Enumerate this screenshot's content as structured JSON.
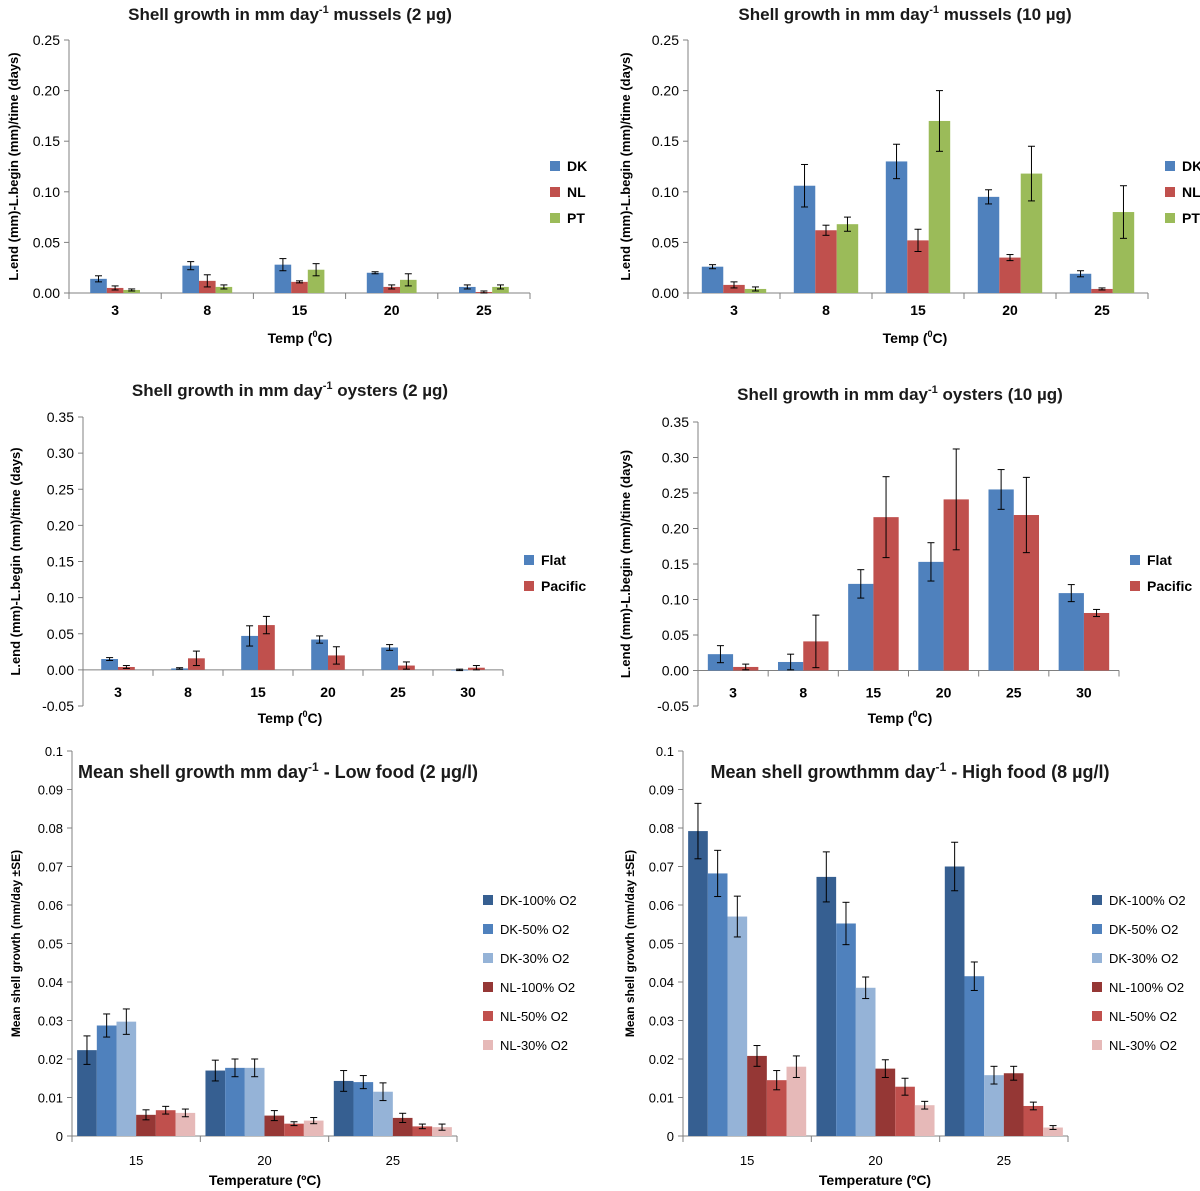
{
  "chart_data": [
    {
      "id": "mussels_2",
      "type": "bar",
      "title": "Shell growth in mm day",
      "title_sup": "-1",
      "title_suffix": " mussels (2 µg)",
      "ylabel": "L.end (mm)-L.begin (mm)/time (days)",
      "xlabel": "Temp (",
      "xlabel_sup": "0",
      "xlabel_suffix": "C)",
      "ylim": [
        0,
        0.25
      ],
      "yticks": [
        "0.00",
        "0.05",
        "0.10",
        "0.15",
        "0.20",
        "0.25"
      ],
      "categories": [
        "3",
        "8",
        "15",
        "20",
        "25"
      ],
      "series": [
        {
          "name": "DK",
          "color": "#4f81bd",
          "values": [
            0.014,
            0.027,
            0.028,
            0.02,
            0.006
          ],
          "errors": [
            0.003,
            0.004,
            0.006,
            0.001,
            0.002
          ]
        },
        {
          "name": "NL",
          "color": "#c0504d",
          "values": [
            0.005,
            0.012,
            0.011,
            0.006,
            0.001
          ],
          "errors": [
            0.002,
            0.006,
            0.001,
            0.002,
            0.001
          ]
        },
        {
          "name": "PT",
          "color": "#9bbb59",
          "values": [
            0.003,
            0.006,
            0.023,
            0.013,
            0.006
          ],
          "errors": [
            0.001,
            0.002,
            0.006,
            0.006,
            0.002
          ]
        }
      ]
    },
    {
      "id": "mussels_10",
      "type": "bar",
      "title": "Shell growth in mm day",
      "title_sup": "-1",
      "title_suffix": " mussels (10 µg)",
      "ylabel": "L.end (mm)-L.begin (mm)/time (days)",
      "xlabel": "Temp (",
      "xlabel_sup": "0",
      "xlabel_suffix": "C)",
      "ylim": [
        0,
        0.25
      ],
      "yticks": [
        "0.00",
        "0.05",
        "0.10",
        "0.15",
        "0.20",
        "0.25"
      ],
      "categories": [
        "3",
        "8",
        "15",
        "20",
        "25"
      ],
      "series": [
        {
          "name": "DK",
          "color": "#4f81bd",
          "values": [
            0.026,
            0.106,
            0.13,
            0.095,
            0.019
          ],
          "errors": [
            0.002,
            0.021,
            0.017,
            0.007,
            0.003
          ]
        },
        {
          "name": "NL",
          "color": "#c0504d",
          "values": [
            0.008,
            0.062,
            0.052,
            0.035,
            0.004
          ],
          "errors": [
            0.003,
            0.005,
            0.011,
            0.003,
            0.001
          ]
        },
        {
          "name": "PT",
          "color": "#9bbb59",
          "values": [
            0.004,
            0.068,
            0.17,
            0.118,
            0.08
          ],
          "errors": [
            0.002,
            0.007,
            0.03,
            0.027,
            0.026
          ]
        }
      ]
    },
    {
      "id": "oysters_2",
      "type": "bar",
      "title": "Shell growth in mm day",
      "title_sup": "-1",
      "title_suffix": " oysters (2 µg)",
      "ylabel": "L.end (mm)-L.begin (mm)/time (days)",
      "xlabel": "Temp (",
      "xlabel_sup": "0",
      "xlabel_suffix": "C)",
      "ylim": [
        -0.05,
        0.35
      ],
      "yticks": [
        "-0.05",
        "0.00",
        "0.05",
        "0.10",
        "0.15",
        "0.20",
        "0.25",
        "0.30",
        "0.35"
      ],
      "categories": [
        "3",
        "8",
        "15",
        "20",
        "25",
        "30"
      ],
      "series": [
        {
          "name": "Flat",
          "color": "#4f81bd",
          "values": [
            0.015,
            0.002,
            0.047,
            0.042,
            0.031,
            0.0
          ],
          "errors": [
            0.002,
            0.001,
            0.014,
            0.005,
            0.004,
            0.001
          ]
        },
        {
          "name": "Pacific",
          "color": "#c0504d",
          "values": [
            0.004,
            0.016,
            0.062,
            0.02,
            0.006,
            0.003
          ],
          "errors": [
            0.002,
            0.01,
            0.012,
            0.012,
            0.005,
            0.003
          ]
        }
      ]
    },
    {
      "id": "oysters_10",
      "type": "bar",
      "title": "Shell growth in mm day",
      "title_sup": "-1",
      "title_suffix": " oysters (10 µg)",
      "ylabel": "L.end (mm)-L.begin (mm)/time (days)",
      "xlabel": "Temp (",
      "xlabel_sup": "0",
      "xlabel_suffix": "C)",
      "ylim": [
        -0.05,
        0.35
      ],
      "yticks": [
        "-0.05",
        "0.00",
        "0.05",
        "0.10",
        "0.15",
        "0.20",
        "0.25",
        "0.30",
        "0.35"
      ],
      "categories": [
        "3",
        "8",
        "15",
        "20",
        "25",
        "30"
      ],
      "series": [
        {
          "name": "Flat",
          "color": "#4f81bd",
          "values": [
            0.023,
            0.012,
            0.122,
            0.153,
            0.255,
            0.109
          ],
          "errors": [
            0.012,
            0.011,
            0.02,
            0.027,
            0.028,
            0.012
          ]
        },
        {
          "name": "Pacific",
          "color": "#c0504d",
          "values": [
            0.005,
            0.041,
            0.216,
            0.241,
            0.219,
            0.081
          ],
          "errors": [
            0.004,
            0.037,
            0.057,
            0.071,
            0.053,
            0.005
          ]
        }
      ]
    },
    {
      "id": "low_food",
      "type": "bar",
      "title": "Mean shell growth mm day",
      "title_sup": "-1",
      "title_suffix": " - Low food (2 µg/l)",
      "ylabel": "Mean shell growth (mm/day ±SE)",
      "xlabel": "Temperature (ºC)",
      "xlabel_sup": "",
      "xlabel_suffix": "",
      "ylim": [
        0,
        0.1
      ],
      "yticks": [
        "0",
        "0.01",
        "0.02",
        "0.03",
        "0.04",
        "0.05",
        "0.06",
        "0.07",
        "0.08",
        "0.09",
        "0.1"
      ],
      "categories": [
        "15",
        "20",
        "25"
      ],
      "series": [
        {
          "name": "DK-100% O2",
          "color": "#365f91",
          "values": [
            0.0223,
            0.017,
            0.0143
          ],
          "errors": [
            0.0037,
            0.0027,
            0.0027
          ]
        },
        {
          "name": "DK-50% O2",
          "color": "#4f81bd",
          "values": [
            0.0287,
            0.0177,
            0.014
          ],
          "errors": [
            0.003,
            0.0023,
            0.0017
          ]
        },
        {
          "name": "DK-30% O2",
          "color": "#95b3d7",
          "values": [
            0.0297,
            0.0177,
            0.0115
          ],
          "errors": [
            0.0033,
            0.0023,
            0.0023
          ]
        },
        {
          "name": "NL-100% O2",
          "color": "#953735",
          "values": [
            0.0055,
            0.0053,
            0.0047
          ],
          "errors": [
            0.0013,
            0.0013,
            0.0012
          ]
        },
        {
          "name": "NL-50% O2",
          "color": "#c0504d",
          "values": [
            0.0067,
            0.0032,
            0.0025
          ],
          "errors": [
            0.001,
            0.0005,
            0.0006
          ]
        },
        {
          "name": "NL-30% O2",
          "color": "#e6b9b8",
          "values": [
            0.006,
            0.004,
            0.0023
          ],
          "errors": [
            0.001,
            0.0008,
            0.0008
          ]
        }
      ]
    },
    {
      "id": "high_food",
      "type": "bar",
      "title": "Mean shell growthmm day",
      "title_sup": "-1",
      "title_suffix": "  - High food (8 µg/l)",
      "ylabel": "Mean shell growth (mm/day ±SE)",
      "xlabel": "Temperature (ºC)",
      "xlabel_sup": "",
      "xlabel_suffix": "",
      "ylim": [
        0,
        0.1
      ],
      "yticks": [
        "0",
        "0.01",
        "0.02",
        "0.03",
        "0.04",
        "0.05",
        "0.06",
        "0.07",
        "0.08",
        "0.09",
        "0.1"
      ],
      "categories": [
        "15",
        "20",
        "25"
      ],
      "series": [
        {
          "name": "DK-100% O2",
          "color": "#365f91",
          "values": [
            0.0792,
            0.0673,
            0.07
          ],
          "errors": [
            0.0072,
            0.0065,
            0.0063
          ]
        },
        {
          "name": "DK-50% O2",
          "color": "#4f81bd",
          "values": [
            0.0682,
            0.0552,
            0.0415
          ],
          "errors": [
            0.006,
            0.0055,
            0.0037
          ]
        },
        {
          "name": "DK-30% O2",
          "color": "#95b3d7",
          "values": [
            0.057,
            0.0385,
            0.0158
          ],
          "errors": [
            0.0053,
            0.0028,
            0.0023
          ]
        },
        {
          "name": "NL-100% O2",
          "color": "#953735",
          "values": [
            0.0208,
            0.0175,
            0.0163
          ],
          "errors": [
            0.0027,
            0.0023,
            0.0018
          ]
        },
        {
          "name": "NL-50% O2",
          "color": "#c0504d",
          "values": [
            0.0145,
            0.0128,
            0.0078
          ],
          "errors": [
            0.0025,
            0.0022,
            0.001
          ]
        },
        {
          "name": "NL-30% O2",
          "color": "#e6b9b8",
          "values": [
            0.018,
            0.008,
            0.0022
          ],
          "errors": [
            0.0028,
            0.001,
            0.0005
          ]
        }
      ]
    }
  ]
}
